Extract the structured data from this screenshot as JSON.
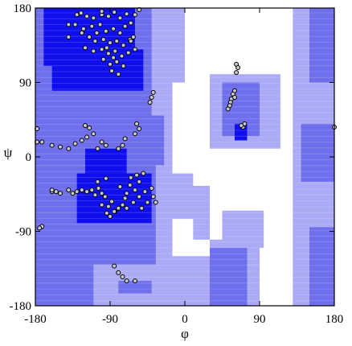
{
  "chart_data": {
    "type": "scatter",
    "title": "",
    "xlabel": "φ",
    "ylabel": "ψ",
    "xlim": [
      -180,
      180
    ],
    "ylim": [
      -180,
      180
    ],
    "xticks": [
      -180,
      -90,
      0,
      90,
      180
    ],
    "yticks": [
      -180,
      -90,
      0,
      90,
      180
    ],
    "grid": false,
    "colors": {
      "core": "#0f0fee",
      "allowed": "#6f6fec",
      "generous": "#aaaaf6",
      "disallowed": "#ffffff",
      "point_fill": "#c8c8c8",
      "point_edge": "#000000"
    },
    "regions": {
      "generous": [
        [
          -180,
          -180,
          -15,
          180
        ],
        [
          -15,
          90,
          0,
          180
        ],
        [
          -15,
          -35,
          10,
          -20
        ],
        [
          -15,
          -75,
          30,
          -35
        ],
        [
          10,
          -100,
          30,
          -75
        ],
        [
          -180,
          -180,
          30,
          -120
        ],
        [
          30,
          -130,
          90,
          -100
        ],
        [
          30,
          -180,
          90,
          -130
        ],
        [
          45,
          -110,
          95,
          -65
        ],
        [
          30,
          10,
          115,
          100
        ],
        [
          130,
          -180,
          180,
          180
        ]
      ],
      "allowed": [
        [
          -180,
          -10,
          -25,
          50
        ],
        [
          -180,
          50,
          -40,
          180
        ],
        [
          -180,
          -130,
          -35,
          -10
        ],
        [
          -180,
          -180,
          -110,
          -130
        ],
        [
          -80,
          -165,
          -40,
          -150
        ],
        [
          45,
          25,
          90,
          90
        ],
        [
          30,
          -180,
          75,
          -110
        ],
        [
          150,
          -180,
          180,
          -85
        ],
        [
          150,
          90,
          180,
          180
        ],
        [
          140,
          -30,
          180,
          40
        ]
      ],
      "core": [
        [
          -170,
          110,
          -60,
          180
        ],
        [
          -160,
          80,
          -50,
          130
        ],
        [
          -130,
          -80,
          -40,
          -20
        ],
        [
          -120,
          -20,
          -70,
          10
        ],
        [
          60,
          20,
          75,
          40
        ],
        [
          -120,
          -60,
          -90,
          -40
        ]
      ]
    },
    "points": [
      [
        -130,
        172
      ],
      [
        -125,
        174
      ],
      [
        -118,
        170
      ],
      [
        -110,
        168
      ],
      [
        -100,
        172
      ],
      [
        -92,
        170
      ],
      [
        -85,
        175
      ],
      [
        -78,
        168
      ],
      [
        -70,
        173
      ],
      [
        -140,
        160
      ],
      [
        -132,
        160
      ],
      [
        -122,
        155
      ],
      [
        -112,
        158
      ],
      [
        -102,
        160
      ],
      [
        -95,
        152
      ],
      [
        -86,
        155
      ],
      [
        -78,
        150
      ],
      [
        -72,
        158
      ],
      [
        -65,
        162
      ],
      [
        -115,
        145
      ],
      [
        -108,
        140
      ],
      [
        -98,
        142
      ],
      [
        -90,
        138
      ],
      [
        -82,
        140
      ],
      [
        -74,
        135
      ],
      [
        -66,
        142
      ],
      [
        -120,
        132
      ],
      [
        -110,
        128
      ],
      [
        -100,
        130
      ],
      [
        -92,
        125
      ],
      [
        -84,
        128
      ],
      [
        -76,
        122
      ],
      [
        -68,
        126
      ],
      [
        -60,
        130
      ],
      [
        -98,
        118
      ],
      [
        -90,
        112
      ],
      [
        -82,
        115
      ],
      [
        -74,
        110
      ],
      [
        -88,
        104
      ],
      [
        -80,
        100
      ],
      [
        -124,
        150
      ],
      [
        -106,
        150
      ],
      [
        -94,
        132
      ],
      [
        -86,
        120
      ],
      [
        -62,
        145
      ],
      [
        -140,
        145
      ],
      [
        -60,
        172
      ],
      [
        -55,
        178
      ],
      [
        -100,
        176
      ],
      [
        -65,
        140
      ],
      [
        -38,
        78
      ],
      [
        -40,
        72
      ],
      [
        -42,
        66
      ],
      [
        -55,
        34
      ],
      [
        -58,
        40
      ],
      [
        -60,
        28
      ],
      [
        -72,
        22
      ],
      [
        -75,
        14
      ],
      [
        -80,
        10
      ],
      [
        -95,
        14
      ],
      [
        -100,
        18
      ],
      [
        -105,
        10
      ],
      [
        -118,
        24
      ],
      [
        -124,
        20
      ],
      [
        -132,
        16
      ],
      [
        -140,
        10
      ],
      [
        -150,
        12
      ],
      [
        -160,
        14
      ],
      [
        -172,
        18
      ],
      [
        -178,
        18
      ],
      [
        -115,
        35
      ],
      [
        -110,
        28
      ],
      [
        -120,
        38
      ],
      [
        -35,
        -55
      ],
      [
        -38,
        -48
      ],
      [
        -40,
        -38
      ],
      [
        -45,
        -55
      ],
      [
        -52,
        -62
      ],
      [
        -48,
        -42
      ],
      [
        -55,
        -30
      ],
      [
        -58,
        -22
      ],
      [
        -60,
        -40
      ],
      [
        -62,
        -55
      ],
      [
        -66,
        -34
      ],
      [
        -70,
        -44
      ],
      [
        -72,
        -50
      ],
      [
        -75,
        -58
      ],
      [
        -80,
        -62
      ],
      [
        -84,
        -66
      ],
      [
        -88,
        -54
      ],
      [
        -92,
        -60
      ],
      [
        -96,
        -48
      ],
      [
        -100,
        -44
      ],
      [
        -104,
        -38
      ],
      [
        -108,
        -46
      ],
      [
        -112,
        -40
      ],
      [
        -118,
        -42
      ],
      [
        -124,
        -40
      ],
      [
        -130,
        -42
      ],
      [
        -135,
        -44
      ],
      [
        -140,
        -40
      ],
      [
        -150,
        -44
      ],
      [
        -155,
        -42
      ],
      [
        -160,
        -42
      ],
      [
        -172,
        -84
      ],
      [
        -175,
        -86
      ],
      [
        -90,
        -72
      ],
      [
        -85,
        -66
      ],
      [
        -94,
        -68
      ],
      [
        -100,
        -58
      ],
      [
        -105,
        -30
      ],
      [
        -95,
        -26
      ],
      [
        -78,
        -36
      ],
      [
        -70,
        -62
      ],
      [
        -65,
        -25
      ],
      [
        -55,
        -48
      ],
      [
        -50,
        -20
      ],
      [
        -160,
        -40
      ],
      [
        62,
        112
      ],
      [
        64,
        108
      ],
      [
        62,
        102
      ],
      [
        60,
        80
      ],
      [
        58,
        76
      ],
      [
        56,
        70
      ],
      [
        55,
        66
      ],
      [
        54,
        62
      ],
      [
        52,
        58
      ],
      [
        60,
        72
      ],
      [
        70,
        36
      ],
      [
        72,
        40
      ],
      [
        68,
        38
      ],
      [
        -85,
        -132
      ],
      [
        -80,
        -140
      ],
      [
        -75,
        -145
      ],
      [
        -70,
        -150
      ],
      [
        -60,
        -150
      ],
      [
        180,
        36
      ],
      [
        -178,
        34
      ]
    ]
  }
}
